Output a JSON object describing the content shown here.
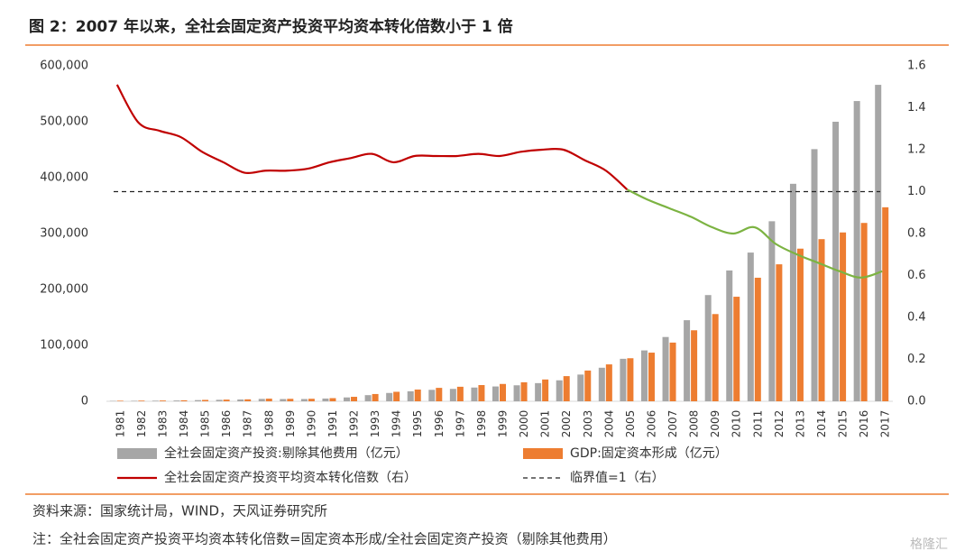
{
  "chart_data": {
    "type": "bar_line",
    "title": "图 2：2007 年以来，全社会固定资产投资平均资本转化倍数小于 1 倍",
    "categories": [
      "1981",
      "1982",
      "1983",
      "1984",
      "1985",
      "1986",
      "1987",
      "1988",
      "1989",
      "1990",
      "1991",
      "1992",
      "1993",
      "1994",
      "1995",
      "1996",
      "1997",
      "1998",
      "1999",
      "2000",
      "2001",
      "2002",
      "2003",
      "2004",
      "2005",
      "2006",
      "2007",
      "2008",
      "2009",
      "2010",
      "2011",
      "2012",
      "2013",
      "2014",
      "2015",
      "2016",
      "2017"
    ],
    "series": [
      {
        "name": "全社会固定资产投资:剔除其他费用（亿元）",
        "type": "bar",
        "color": "#a6a6a6",
        "values": [
          660,
          900,
          1090,
          1430,
          2100,
          2630,
          3210,
          4270,
          4000,
          4050,
          4910,
          6900,
          11000,
          14900,
          17900,
          20500,
          22200,
          24600,
          26500,
          28600,
          32500,
          37500,
          47800,
          60000,
          76000,
          91000,
          115000,
          145000,
          190000,
          234000,
          266000,
          322000,
          389000,
          451000,
          500000,
          537000,
          566000
        ]
      },
      {
        "name": "GDP:固定资本形成（亿元）",
        "type": "bar",
        "color": "#ed7d31",
        "values": [
          1000,
          1200,
          1400,
          1800,
          2500,
          3000,
          3500,
          4700,
          4400,
          4500,
          5600,
          8000,
          13000,
          17000,
          21000,
          24000,
          26000,
          29000,
          31000,
          34000,
          39000,
          45000,
          55000,
          66000,
          77000,
          87000,
          105000,
          127000,
          156000,
          187000,
          221000,
          245000,
          273000,
          290000,
          302000,
          319000,
          347000
        ]
      },
      {
        "name": "全社会固定资产投资平均资本转化倍数（右）",
        "type": "line",
        "axis": "y2",
        "color": "#c00000",
        "recolor": {
          "from": "2005",
          "color": "#7cb342"
        },
        "values": [
          1.51,
          1.33,
          1.29,
          1.26,
          1.19,
          1.14,
          1.09,
          1.1,
          1.1,
          1.11,
          1.14,
          1.16,
          1.18,
          1.14,
          1.17,
          1.17,
          1.17,
          1.18,
          1.17,
          1.19,
          1.2,
          1.2,
          1.15,
          1.1,
          1.01,
          0.96,
          0.92,
          0.88,
          0.83,
          0.8,
          0.83,
          0.75,
          0.7,
          0.66,
          0.62,
          0.59,
          0.62
        ]
      }
    ],
    "reference_line": {
      "name": "临界值=1（右）",
      "value": 1,
      "axis": "y2",
      "color": "#222222",
      "dashed": true
    },
    "ylim": [
      0,
      600000
    ],
    "yticks": [
      0,
      {
        "value": 100000,
        "label": "100,000"
      },
      {
        "value": 200000,
        "label": "200,000"
      },
      {
        "value": 300000,
        "label": "300,000"
      },
      {
        "value": 400000,
        "label": "400,000"
      },
      {
        "value": 500000,
        "label": "500,000"
      },
      {
        "value": 600000,
        "label": "600,000"
      }
    ],
    "y2lim": [
      0,
      1.6
    ],
    "y2ticks": [
      {
        "value": 0,
        "label": "0.0"
      },
      0.2,
      0.4,
      0.6,
      0.8,
      {
        "value": 1,
        "label": "1.0"
      },
      1.2,
      1.4,
      1.6
    ],
    "source": "资料来源：国家统计局，WIND，天风证券研究所",
    "note": "注：全社会固定资产投资平均资本转化倍数=固定资本形成/全社会固定资产投资（剔除其他费用）",
    "watermark": "格隆汇"
  }
}
